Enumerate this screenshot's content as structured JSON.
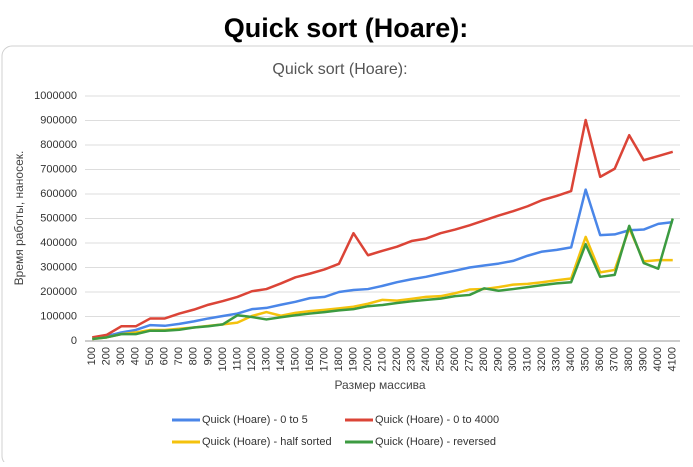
{
  "heading": "Quick sort (Hoare):",
  "chart_data": {
    "type": "line",
    "title": "Quick sort (Hoare):",
    "x_label": "Размер массива",
    "y_label": "Время работы, наносек.",
    "categories": [
      "100",
      "200",
      "300",
      "400",
      "500",
      "600",
      "700",
      "800",
      "900",
      "1000",
      "1100",
      "1200",
      "1300",
      "1400",
      "1500",
      "1600",
      "1700",
      "1800",
      "1900",
      "2000",
      "2100",
      "2200",
      "2300",
      "2400",
      "2500",
      "2600",
      "2700",
      "2800",
      "2900",
      "3000",
      "3100",
      "3200",
      "3300",
      "3400",
      "3500",
      "3600",
      "3700",
      "3800",
      "3900",
      "4000",
      "4100"
    ],
    "ylim": [
      0,
      1000000
    ],
    "yticks": [
      0,
      100000,
      200000,
      300000,
      400000,
      500000,
      600000,
      700000,
      800000,
      900000,
      1000000
    ],
    "grid": true,
    "legend": "bottom",
    "series": [
      {
        "name": "Quick (Hoare) - 0 to 5",
        "color": "#4a86e8",
        "values": [
          10000,
          20000,
          35000,
          45000,
          65000,
          62000,
          70000,
          80000,
          92000,
          102000,
          112000,
          130000,
          135000,
          148000,
          160000,
          175000,
          180000,
          200000,
          208000,
          212000,
          225000,
          240000,
          252000,
          262000,
          275000,
          287000,
          300000,
          308000,
          316000,
          327000,
          348000,
          365000,
          372000,
          382000,
          618000,
          432000,
          435000,
          452000,
          455000,
          478000,
          485000
        ]
      },
      {
        "name": "Quick (Hoare) - 0 to 4000",
        "color": "#db4437",
        "values": [
          15000,
          25000,
          60000,
          60000,
          92000,
          92000,
          112000,
          128000,
          148000,
          163000,
          180000,
          203000,
          212000,
          235000,
          260000,
          275000,
          292000,
          315000,
          440000,
          350000,
          368000,
          385000,
          408000,
          418000,
          440000,
          455000,
          472000,
          492000,
          512000,
          530000,
          550000,
          575000,
          592000,
          612000,
          902000,
          670000,
          703000,
          840000,
          738000,
          755000,
          772000
        ]
      },
      {
        "name": "Quick (Hoare) - half sorted",
        "color": "#f4c20d",
        "values": [
          8000,
          15000,
          28000,
          35000,
          45000,
          45000,
          50000,
          55000,
          62000,
          68000,
          75000,
          102000,
          118000,
          103000,
          115000,
          122000,
          127000,
          133000,
          140000,
          152000,
          168000,
          165000,
          172000,
          180000,
          183000,
          195000,
          210000,
          212000,
          220000,
          230000,
          233000,
          240000,
          248000,
          255000,
          425000,
          280000,
          290000,
          460000,
          325000,
          330000,
          330000
        ]
      },
      {
        "name": "Quick (Hoare) - reversed",
        "color": "#3c9b41",
        "values": [
          8000,
          15000,
          28000,
          28000,
          42000,
          42000,
          46000,
          55000,
          60000,
          68000,
          105000,
          98000,
          88000,
          97000,
          105000,
          112000,
          118000,
          125000,
          130000,
          142000,
          147000,
          155000,
          162000,
          168000,
          173000,
          183000,
          188000,
          215000,
          205000,
          212000,
          220000,
          228000,
          235000,
          240000,
          395000,
          262000,
          270000,
          470000,
          318000,
          295000,
          500000
        ]
      }
    ]
  }
}
